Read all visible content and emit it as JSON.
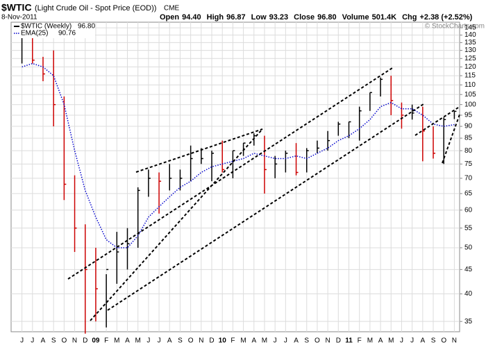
{
  "chart_data": {
    "type": "ohlc",
    "title": "$WTIC",
    "subtitle": "(Light Crude Oil - Spot Price (EOD))",
    "exchange": "CME",
    "date": "8-Nov-2011",
    "quote": [
      {
        "label": "Open",
        "value": "94.40"
      },
      {
        "label": "High",
        "value": "96.87"
      },
      {
        "label": "Low",
        "value": "93.23"
      },
      {
        "label": "Close",
        "value": "96.80"
      },
      {
        "label": "Volume",
        "value": "501.4K"
      },
      {
        "label": "Chg",
        "value": "+2.38 (+2.52%)"
      }
    ],
    "copyright": "© StockCharts.com",
    "categories": [
      "J",
      "J",
      "A",
      "S",
      "O",
      "N",
      "D",
      "09",
      "F",
      "M",
      "A",
      "M",
      "J",
      "J",
      "A",
      "S",
      "O",
      "N",
      "D",
      "10",
      "F",
      "M",
      "A",
      "M",
      "J",
      "J",
      "A",
      "S",
      "O",
      "N",
      "D",
      "11",
      "F",
      "M",
      "A",
      "M",
      "J",
      "J",
      "A",
      "S",
      "O",
      "N"
    ],
    "series": [
      {
        "name": "$WTIC (Weekly)",
        "last": "96.80",
        "up_color": "#000000",
        "down_color": "#cc0000",
        "high": [
          140,
          147,
          126,
          130,
          104,
          71,
          56,
          50,
          44,
          54,
          55,
          67,
          73,
          72,
          75,
          73,
          82,
          81,
          80,
          84,
          80,
          83,
          87,
          86,
          78,
          80,
          83,
          81,
          84,
          88,
          92,
          92,
          99,
          106,
          114,
          115,
          101,
          100,
          99,
          90,
          94,
          96.87
        ],
        "low": [
          122,
          122,
          112,
          90,
          63,
          49,
          33,
          35,
          34,
          42,
          45,
          50,
          64,
          59,
          66,
          66,
          69,
          75,
          69,
          72,
          70,
          78,
          82,
          65,
          70,
          72,
          71,
          72,
          79,
          80,
          86,
          85,
          84,
          97,
          104,
          95,
          89,
          93,
          76,
          77,
          75,
          93.23
        ],
        "close": [
          140,
          124,
          116,
          100,
          68,
          55,
          45,
          41,
          45,
          49,
          51,
          66,
          70,
          69,
          70,
          70,
          77,
          77,
          79,
          73,
          80,
          83,
          86,
          73,
          75,
          79,
          72,
          80,
          81,
          84,
          91,
          92,
          97,
          106,
          113,
          102,
          95,
          96,
          88,
          79,
          93,
          96.8
        ]
      },
      {
        "name": "EMA(25)",
        "last": "90.76",
        "color": "#0000cc",
        "values": [
          120,
          122,
          120,
          115,
          100,
          80,
          66,
          58,
          52,
          50,
          50,
          53,
          58,
          61,
          64,
          67,
          69,
          72,
          74,
          75,
          76,
          77,
          79,
          78,
          77,
          77,
          78,
          77,
          79,
          81,
          84,
          86,
          89,
          93,
          99,
          101,
          98,
          98,
          95,
          91,
          90,
          90.76
        ]
      }
    ],
    "ylim": [
      33.3,
      149
    ],
    "yticks": [
      35,
      40,
      45,
      50,
      55,
      60,
      65,
      70,
      75,
      80,
      85,
      90,
      95,
      100,
      105,
      110,
      115,
      120,
      125,
      130,
      135,
      140,
      145
    ],
    "log_scale": true,
    "grid": true
  }
}
